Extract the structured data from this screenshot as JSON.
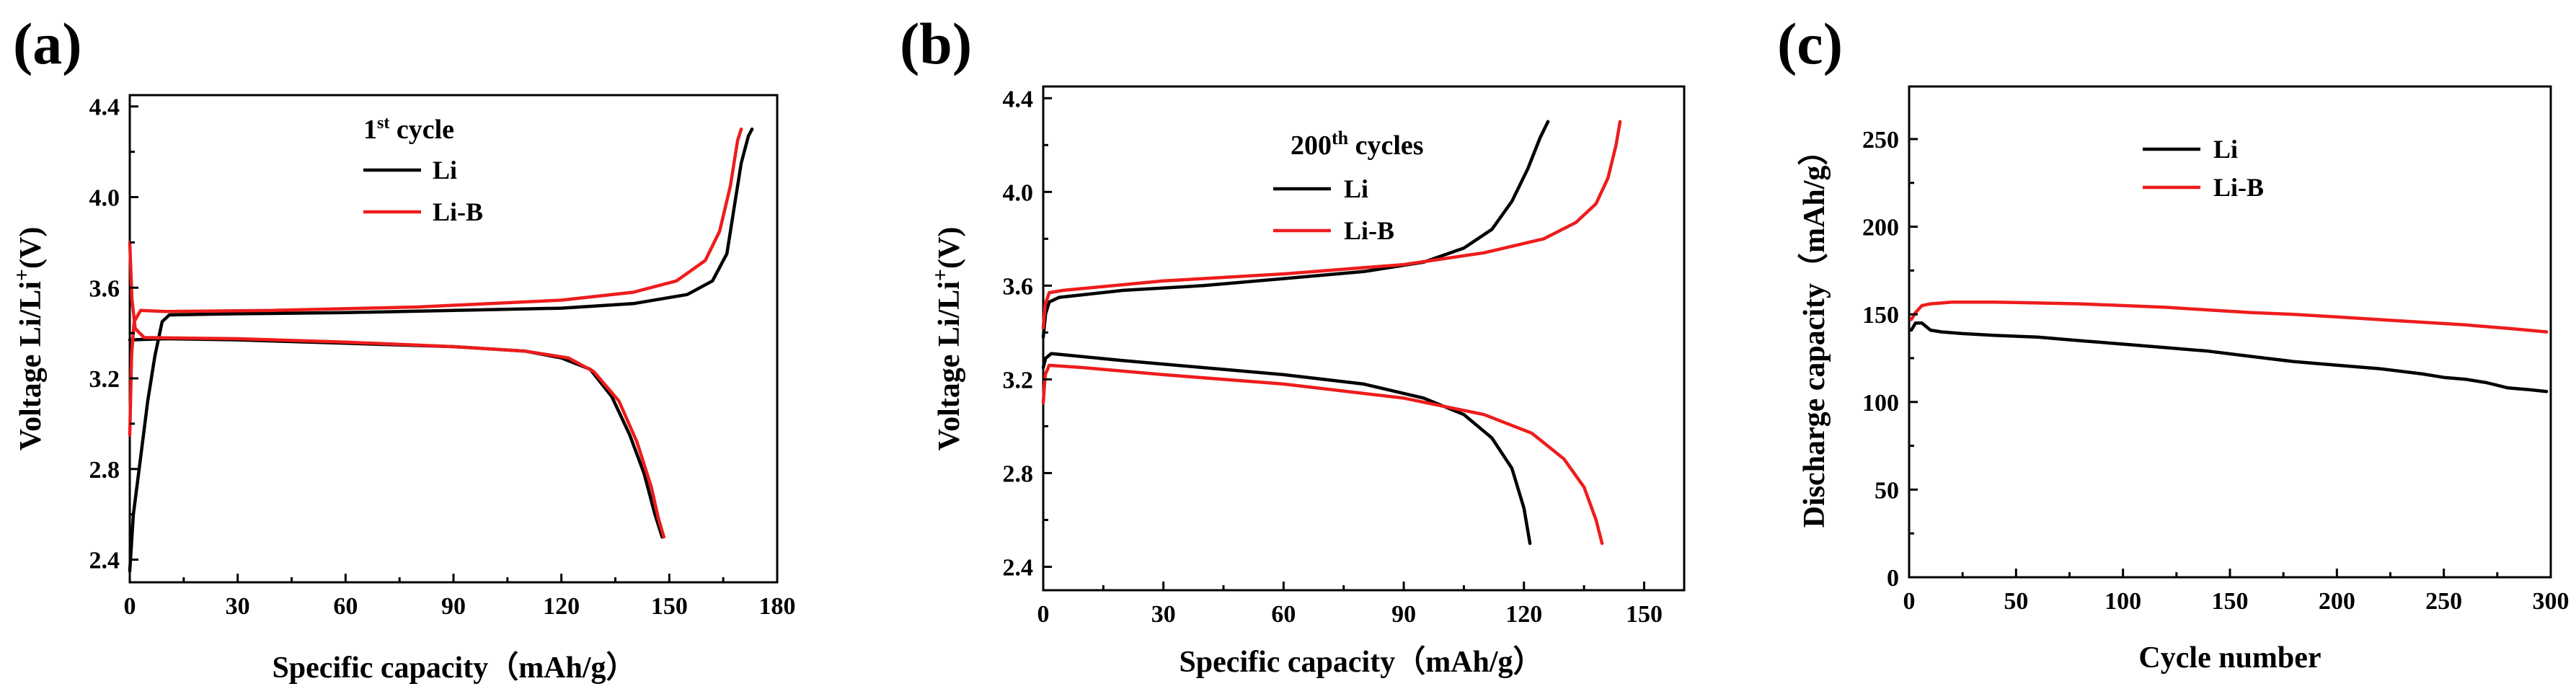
{
  "colors": {
    "li": "#000000",
    "li_b": "#ee1c1c"
  },
  "chart_data": [
    {
      "id": "a",
      "panel_label": "(a)",
      "type": "line",
      "legend_title_main": "1",
      "legend_title_sup": "st",
      "legend_title_rest": " cycle",
      "xlabel": "Specific capacity（mAh/g）",
      "ylabel_main": "Voltage Li/Li",
      "ylabel_sup": "+",
      "ylabel_end": "(V)",
      "xlim": [
        0,
        180
      ],
      "ylim": [
        2.3,
        4.45
      ],
      "xticks": [
        0,
        30,
        60,
        90,
        120,
        150,
        180
      ],
      "xtick_labels": [
        "0",
        "30",
        "60",
        "90",
        "120",
        "150",
        "180"
      ],
      "yticks": [
        2.4,
        2.8,
        3.2,
        3.6,
        4.0,
        4.4
      ],
      "ytick_labels": [
        "2.4",
        "2.8",
        "3.2",
        "3.6",
        "4.0",
        "4.4"
      ],
      "legend": [
        "Li",
        "Li-B"
      ],
      "series": [
        {
          "name": "Li",
          "color_key": "li",
          "segments": [
            [
              [
                0,
                2.35
              ],
              [
                1,
                2.6
              ],
              [
                3,
                2.85
              ],
              [
                5,
                3.1
              ],
              [
                7,
                3.3
              ],
              [
                9,
                3.45
              ],
              [
                11,
                3.48
              ],
              [
                30,
                3.485
              ],
              [
                60,
                3.49
              ],
              [
                90,
                3.5
              ],
              [
                120,
                3.51
              ],
              [
                140,
                3.53
              ],
              [
                155,
                3.57
              ],
              [
                162,
                3.63
              ],
              [
                166,
                3.75
              ],
              [
                168,
                3.95
              ],
              [
                170,
                4.15
              ],
              [
                172,
                4.27
              ],
              [
                173,
                4.3
              ]
            ],
            [
              [
                0,
                3.37
              ],
              [
                10,
                3.375
              ],
              [
                30,
                3.37
              ],
              [
                60,
                3.355
              ],
              [
                90,
                3.34
              ],
              [
                110,
                3.32
              ],
              [
                120,
                3.29
              ],
              [
                128,
                3.24
              ],
              [
                134,
                3.12
              ],
              [
                139,
                2.95
              ],
              [
                143,
                2.78
              ],
              [
                146,
                2.6
              ],
              [
                148,
                2.5
              ]
            ]
          ]
        },
        {
          "name": "Li-B",
          "color_key": "li_b",
          "segments": [
            [
              [
                0,
                2.95
              ],
              [
                0.5,
                3.3
              ],
              [
                1.2,
                3.45
              ],
              [
                3,
                3.5
              ],
              [
                10,
                3.495
              ],
              [
                40,
                3.5
              ],
              [
                80,
                3.515
              ],
              [
                120,
                3.545
              ],
              [
                140,
                3.58
              ],
              [
                152,
                3.63
              ],
              [
                160,
                3.72
              ],
              [
                164,
                3.85
              ],
              [
                167,
                4.05
              ],
              [
                169,
                4.25
              ],
              [
                170,
                4.3
              ]
            ],
            [
              [
                0,
                3.8
              ],
              [
                0.6,
                3.55
              ],
              [
                1.5,
                3.42
              ],
              [
                4,
                3.38
              ],
              [
                30,
                3.375
              ],
              [
                60,
                3.36
              ],
              [
                90,
                3.34
              ],
              [
                110,
                3.32
              ],
              [
                122,
                3.29
              ],
              [
                129,
                3.23
              ],
              [
                136,
                3.1
              ],
              [
                141,
                2.92
              ],
              [
                145,
                2.72
              ],
              [
                147,
                2.58
              ],
              [
                148.5,
                2.5
              ]
            ]
          ]
        }
      ]
    },
    {
      "id": "b",
      "panel_label": "(b)",
      "type": "line",
      "legend_title_main": "200",
      "legend_title_sup": "th",
      "legend_title_rest": " cycles",
      "xlabel": "Specific capacity（mAh/g）",
      "ylabel_main": "Voltage Li/Li",
      "ylabel_sup": "+",
      "ylabel_end": "(V)",
      "xlim": [
        0,
        160
      ],
      "ylim": [
        2.3,
        4.45
      ],
      "xticks": [
        0,
        30,
        60,
        90,
        120,
        150
      ],
      "xtick_labels": [
        "0",
        "30",
        "60",
        "90",
        "120",
        "150"
      ],
      "yticks": [
        2.4,
        2.8,
        3.2,
        3.6,
        4.0,
        4.4
      ],
      "ytick_labels": [
        "2.4",
        "2.8",
        "3.2",
        "3.6",
        "4.0",
        "4.4"
      ],
      "legend": [
        "Li",
        "Li-B"
      ],
      "series": [
        {
          "name": "Li",
          "color_key": "li",
          "segments": [
            [
              [
                0,
                3.38
              ],
              [
                0.6,
                3.48
              ],
              [
                1.5,
                3.53
              ],
              [
                4,
                3.55
              ],
              [
                20,
                3.58
              ],
              [
                40,
                3.6
              ],
              [
                60,
                3.63
              ],
              [
                80,
                3.66
              ],
              [
                95,
                3.7
              ],
              [
                105,
                3.76
              ],
              [
                112,
                3.84
              ],
              [
                117,
                3.96
              ],
              [
                121,
                4.1
              ],
              [
                124,
                4.23
              ],
              [
                126,
                4.3
              ]
            ],
            [
              [
                0,
                3.25
              ],
              [
                0.6,
                3.29
              ],
              [
                2,
                3.31
              ],
              [
                20,
                3.28
              ],
              [
                40,
                3.25
              ],
              [
                60,
                3.22
              ],
              [
                80,
                3.18
              ],
              [
                95,
                3.12
              ],
              [
                105,
                3.05
              ],
              [
                112,
                2.95
              ],
              [
                117,
                2.82
              ],
              [
                120,
                2.65
              ],
              [
                121.5,
                2.5
              ]
            ]
          ]
        },
        {
          "name": "Li-B",
          "color_key": "li_b",
          "segments": [
            [
              [
                0,
                3.42
              ],
              [
                0.5,
                3.52
              ],
              [
                1.5,
                3.57
              ],
              [
                5,
                3.58
              ],
              [
                30,
                3.62
              ],
              [
                60,
                3.65
              ],
              [
                90,
                3.69
              ],
              [
                110,
                3.74
              ],
              [
                125,
                3.8
              ],
              [
                133,
                3.87
              ],
              [
                138,
                3.95
              ],
              [
                141,
                4.06
              ],
              [
                143,
                4.2
              ],
              [
                144,
                4.3
              ]
            ],
            [
              [
                0,
                3.1
              ],
              [
                0.5,
                3.22
              ],
              [
                1.5,
                3.26
              ],
              [
                10,
                3.25
              ],
              [
                30,
                3.22
              ],
              [
                60,
                3.18
              ],
              [
                90,
                3.12
              ],
              [
                110,
                3.05
              ],
              [
                122,
                2.97
              ],
              [
                130,
                2.86
              ],
              [
                135,
                2.74
              ],
              [
                138,
                2.6
              ],
              [
                139.5,
                2.5
              ]
            ]
          ]
        }
      ]
    },
    {
      "id": "c",
      "panel_label": "(c)",
      "type": "line",
      "xlabel": "Cycle number",
      "ylabel": "Discharge capacity（mAh/g）",
      "xlim": [
        0,
        300
      ],
      "ylim": [
        0,
        280
      ],
      "xticks": [
        0,
        50,
        100,
        150,
        200,
        250,
        300
      ],
      "xtick_labels": [
        "0",
        "50",
        "100",
        "150",
        "200",
        "250",
        "300"
      ],
      "yticks": [
        0,
        50,
        100,
        150,
        200,
        250
      ],
      "ytick_labels": [
        "0",
        "50",
        "100",
        "150",
        "200",
        "250"
      ],
      "legend": [
        "Li",
        "Li-B"
      ],
      "series": [
        {
          "name": "Li",
          "color_key": "li",
          "segments": [
            [
              [
                1,
                141
              ],
              [
                3,
                145
              ],
              [
                6,
                145
              ],
              [
                10,
                141
              ],
              [
                15,
                140
              ],
              [
                25,
                139
              ],
              [
                40,
                138
              ],
              [
                60,
                137
              ],
              [
                80,
                135
              ],
              [
                100,
                133
              ],
              [
                120,
                131
              ],
              [
                140,
                129
              ],
              [
                160,
                126
              ],
              [
                180,
                123
              ],
              [
                200,
                121
              ],
              [
                220,
                119
              ],
              [
                240,
                116
              ],
              [
                250,
                114
              ],
              [
                260,
                113
              ],
              [
                270,
                111
              ],
              [
                280,
                108
              ],
              [
                290,
                107
              ],
              [
                298,
                106
              ]
            ]
          ]
        },
        {
          "name": "Li-B",
          "color_key": "li_b",
          "segments": [
            [
              [
                1,
                147
              ],
              [
                3,
                151
              ],
              [
                6,
                155
              ],
              [
                10,
                156
              ],
              [
                20,
                157
              ],
              [
                40,
                157
              ],
              [
                60,
                156.5
              ],
              [
                80,
                156
              ],
              [
                100,
                155
              ],
              [
                120,
                154
              ],
              [
                140,
                152.5
              ],
              [
                160,
                151
              ],
              [
                180,
                150
              ],
              [
                200,
                148.5
              ],
              [
                220,
                147
              ],
              [
                240,
                145.5
              ],
              [
                260,
                144
              ],
              [
                280,
                142
              ],
              [
                298,
                140
              ]
            ]
          ]
        }
      ]
    }
  ]
}
